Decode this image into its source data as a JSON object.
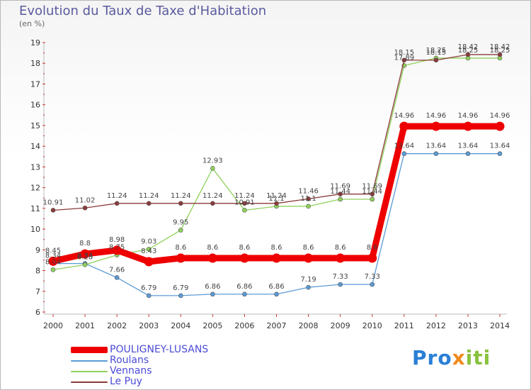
{
  "title": "Evolution du Taux de Taxe d'Habitation",
  "units_label": "(en %)",
  "logo": {
    "part1": "Pro",
    "part2": "x",
    "part3": "iti"
  },
  "chart_data": {
    "type": "line",
    "title": "Evolution du Taux de Taxe d'Habitation",
    "ylabel": "(en %)",
    "xlabel": "",
    "ylim": [
      6,
      19
    ],
    "yticks": [
      6,
      7,
      8,
      9,
      10,
      11,
      12,
      13,
      14,
      15,
      16,
      17,
      18,
      19
    ],
    "x": [
      "2000",
      "2001",
      "2002",
      "2003",
      "2004",
      "2005",
      "2006",
      "2007",
      "2008",
      "2009",
      "2010",
      "2011",
      "2012",
      "2013",
      "2014"
    ],
    "grid": false,
    "legend": "bottom-left",
    "series": [
      {
        "name": "Roulans",
        "color": "#5b9bd5",
        "values": [
          8.34,
          8.34,
          7.66,
          6.79,
          6.79,
          6.86,
          6.86,
          6.86,
          7.19,
          7.33,
          7.33,
          13.64,
          13.64,
          13.64,
          13.64
        ],
        "labels": [
          "8.34",
          "8.34",
          "7.66",
          "6.79",
          "6.79",
          "6.86",
          "6.86",
          "6.86",
          "7.19",
          "7.33",
          "7.33",
          "13.64",
          "13.64",
          "13.64",
          "13.64"
        ]
      },
      {
        "name": "Vennans",
        "color": "#8fd15a",
        "values": [
          8.04,
          8.28,
          8.75,
          9.03,
          9.95,
          12.93,
          10.91,
          11.1,
          11.1,
          11.44,
          11.44,
          17.89,
          18.25,
          18.25,
          18.25
        ],
        "labels": [
          "8.04",
          "8.28",
          "8.75",
          "9.03",
          "9.95",
          "12.93",
          "10.91",
          "11.1",
          "11.1",
          "11.44",
          "11.44",
          "17.89",
          "18.25",
          "18.25",
          "18.25"
        ]
      },
      {
        "name": "Le Puy",
        "color": "#8b3a3a",
        "values": [
          10.91,
          11.02,
          11.24,
          11.24,
          11.24,
          11.24,
          11.24,
          11.24,
          11.46,
          11.69,
          11.69,
          18.15,
          18.15,
          18.42,
          18.42
        ],
        "labels": [
          "10.91",
          "11.02",
          "11.24",
          "11.24",
          "11.24",
          "11.24",
          "11.24",
          "11.24",
          "11.46",
          "11.69",
          "11.69",
          "18.15",
          "18.15",
          "18.42",
          "18.42"
        ]
      },
      {
        "name": "POULIGNEY-LUSANS",
        "color": "#ee0000",
        "values": [
          8.45,
          8.8,
          8.98,
          8.43,
          8.6,
          8.6,
          8.6,
          8.6,
          8.6,
          8.6,
          8.6,
          14.96,
          14.96,
          14.96,
          14.96
        ],
        "labels": [
          "8.45",
          "8.8",
          "8.98",
          "8.43",
          "8.6",
          "8.6",
          "8.6",
          "8.6",
          "8.6",
          "8.6",
          "8.6",
          "14.96",
          "14.96",
          "14.96",
          "14.96"
        ]
      }
    ],
    "legend_order": [
      "POULIGNEY-LUSANS",
      "Roulans",
      "Vennans",
      "Le Puy"
    ]
  }
}
